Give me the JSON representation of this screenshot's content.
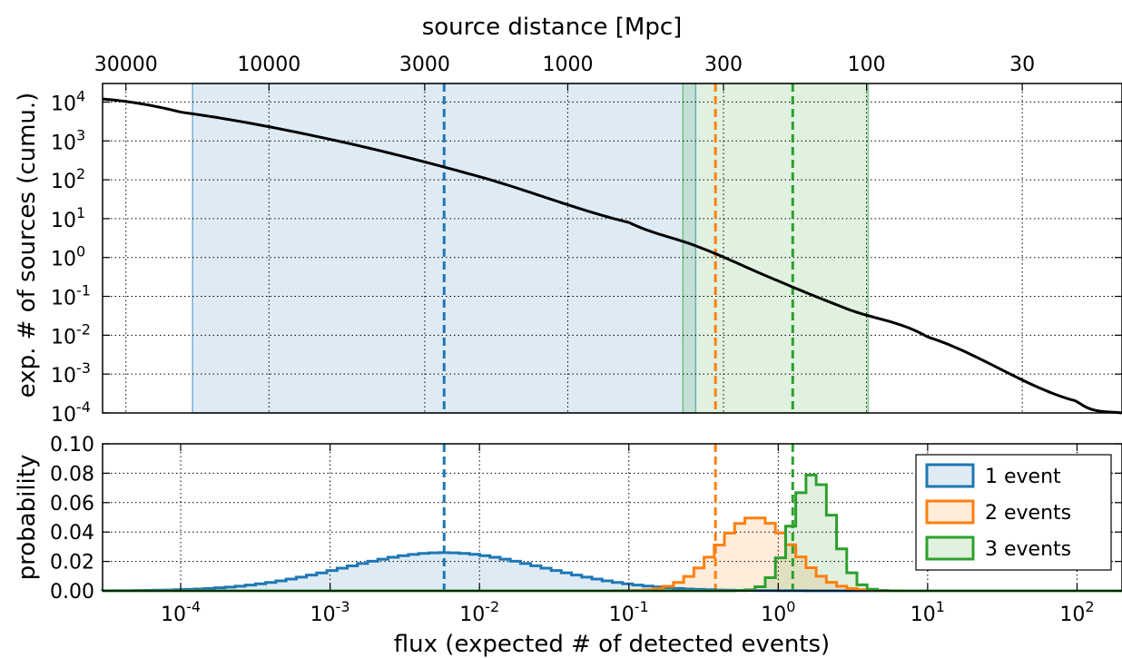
{
  "colors": {
    "blue": "#1f77b4",
    "orange": "#ff7f0e",
    "green": "#2ca02c",
    "curve": "#000000",
    "grid": "#000000"
  },
  "chart_data": [
    {
      "type": "line",
      "xlabel_top": "source distance [Mpc]",
      "ylabel": "exp. # of sources (cumu.)",
      "x_scale": "log",
      "y_scale": "log",
      "xlim": [
        3e-05,
        200
      ],
      "ylim": [
        0.0001,
        30000
      ],
      "grid": true,
      "top_axis_ticks": [
        {
          "label": "30000",
          "flux": 4.3e-05
        },
        {
          "label": "10000",
          "flux": 0.00039
        },
        {
          "label": "3000",
          "flux": 0.0043
        },
        {
          "label": "1000",
          "flux": 0.039
        },
        {
          "label": "300",
          "flux": 0.43
        },
        {
          "label": "100",
          "flux": 3.9
        },
        {
          "label": "30",
          "flux": 43
        }
      ],
      "y_ticks": [
        {
          "base": "10",
          "exp": "4",
          "value": 10000
        },
        {
          "base": "10",
          "exp": "3",
          "value": 1000
        },
        {
          "base": "10",
          "exp": "2",
          "value": 100
        },
        {
          "base": "10",
          "exp": "1",
          "value": 10
        },
        {
          "base": "10",
          "exp": "0",
          "value": 1
        },
        {
          "base": "10",
          "exp": "-1",
          "value": 0.1
        },
        {
          "base": "10",
          "exp": "-2",
          "value": 0.01
        },
        {
          "base": "10",
          "exp": "-3",
          "value": 0.001
        },
        {
          "base": "10",
          "exp": "-4",
          "value": 0.0001
        }
      ],
      "curve": {
        "x": [
          3e-05,
          0.0001,
          0.001,
          0.01,
          0.1,
          0.3,
          1,
          3,
          10,
          100,
          200
        ],
        "y": [
          12000,
          5500,
          1100,
          120,
          8,
          1.8,
          0.25,
          0.045,
          0.009,
          0.0002,
          0.0001
        ]
      },
      "shaded_bands": [
        {
          "series": "1 event",
          "color": "blue",
          "x_range": [
            0.00012,
            0.28
          ]
        },
        {
          "series": "3 events",
          "color": "green",
          "x_range": [
            0.23,
            4
          ]
        }
      ],
      "vertical_lines": [
        {
          "series": "1 event",
          "color": "blue",
          "x": 0.0058
        },
        {
          "series": "2 events",
          "color": "orange",
          "x": 0.38
        },
        {
          "series": "3 events",
          "color": "green",
          "x": 1.25
        }
      ]
    },
    {
      "type": "area",
      "xlabel": "flux (expected # of detected events)",
      "ylabel": "probability",
      "x_scale": "log",
      "xlim": [
        3e-05,
        200
      ],
      "ylim": [
        0,
        0.1
      ],
      "grid": true,
      "x_ticks": [
        {
          "base": "10",
          "exp": "-4",
          "value": 0.0001
        },
        {
          "base": "10",
          "exp": "-3",
          "value": 0.001
        },
        {
          "base": "10",
          "exp": "-2",
          "value": 0.01
        },
        {
          "base": "10",
          "exp": "-1",
          "value": 0.1
        },
        {
          "base": "10",
          "exp": "0",
          "value": 1
        },
        {
          "base": "10",
          "exp": "1",
          "value": 10
        },
        {
          "base": "10",
          "exp": "2",
          "value": 100
        }
      ],
      "y_ticks": [
        "0.00",
        "0.02",
        "0.04",
        "0.06",
        "0.08",
        "0.10"
      ],
      "legend_position": "top-right",
      "series": [
        {
          "name": "1 event",
          "color": "blue",
          "peak_x": 0.0058,
          "peak_y": 0.026,
          "width_decades": 1.57,
          "x_range": [
            3e-05,
            10
          ]
        },
        {
          "name": "2 events",
          "color": "orange",
          "peak_x": 0.7,
          "peak_y": 0.05,
          "width_decades": 0.58,
          "x_range": [
            0.0003,
            10
          ]
        },
        {
          "name": "3 events",
          "color": "green",
          "peak_x": 1.7,
          "peak_y": 0.079,
          "width_decades": 0.32,
          "x_range": [
            0.01,
            12
          ]
        }
      ],
      "vertical_lines": [
        {
          "series": "1 event",
          "color": "blue",
          "x": 0.0058
        },
        {
          "series": "2 events",
          "color": "orange",
          "x": 0.38
        },
        {
          "series": "3 events",
          "color": "green",
          "x": 1.25
        }
      ]
    }
  ]
}
